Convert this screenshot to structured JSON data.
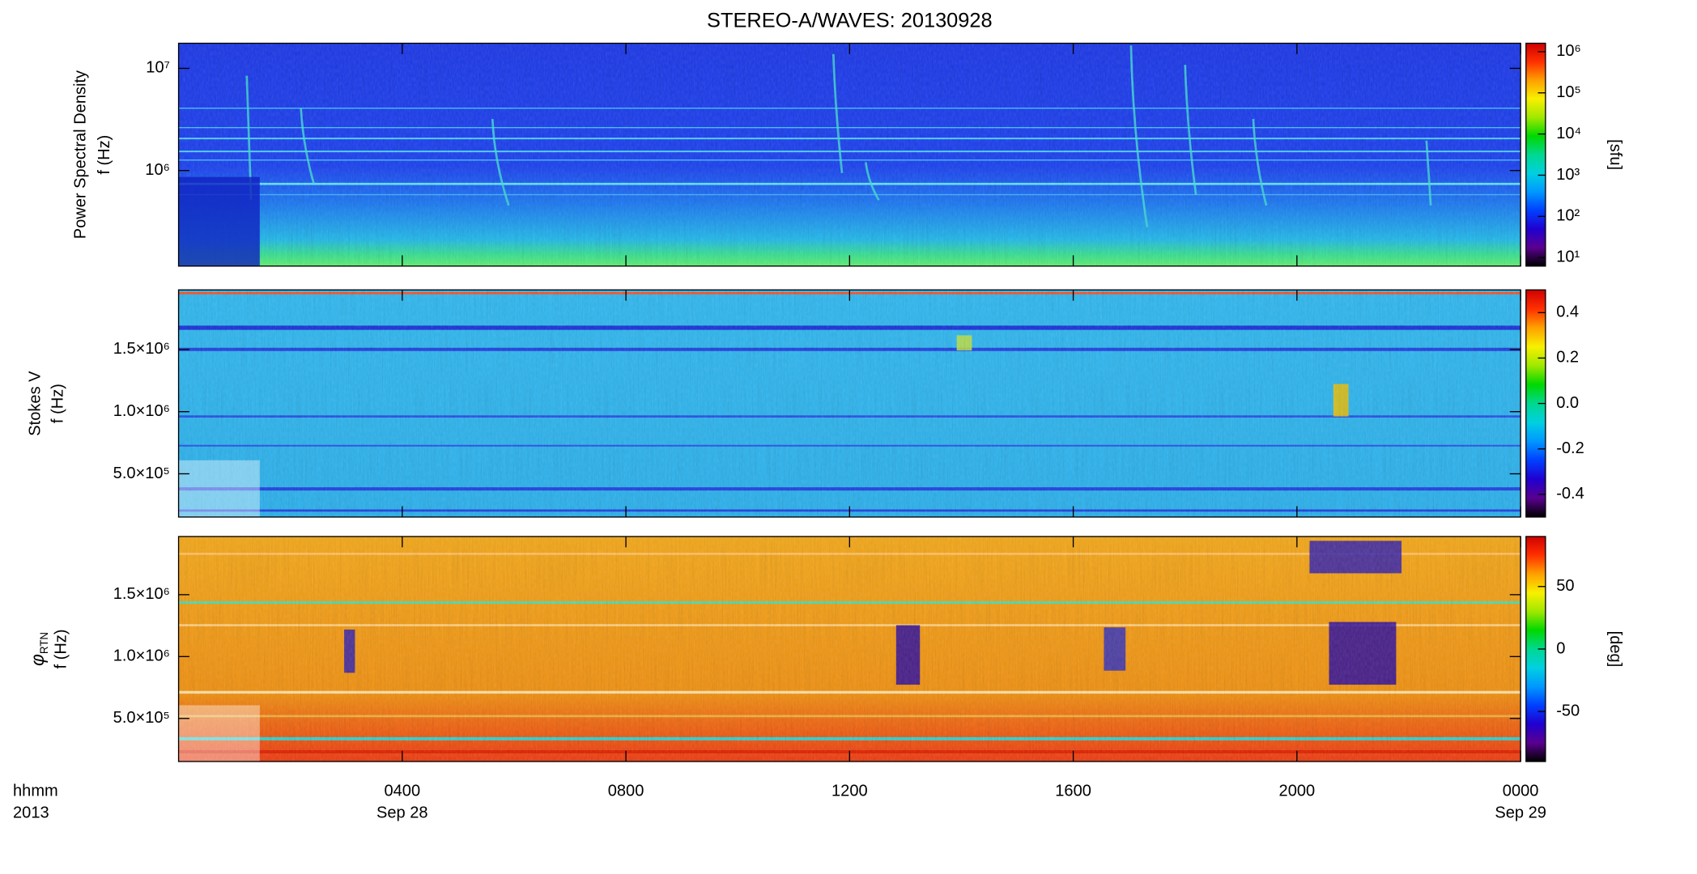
{
  "chart_data": [
    {
      "type": "spectrogram",
      "title": "STEREO-A/WAVES: 20130928",
      "ylabel": [
        "Power Spectral Density",
        "f (Hz)"
      ],
      "ylog": true,
      "ylim": [
        116000,
        17600000
      ],
      "yticks": [
        {
          "value": 1000000,
          "label": "10⁶"
        },
        {
          "value": 10000000,
          "label": "10⁷"
        }
      ],
      "clog": true,
      "clim": [
        6.2,
        1600000
      ],
      "cticks": [
        {
          "value": 10,
          "label": "10¹"
        },
        {
          "value": 100,
          "label": "10²"
        },
        {
          "value": 1000,
          "label": "10³"
        },
        {
          "value": 10000,
          "label": "10⁴"
        },
        {
          "value": 100000,
          "label": "10⁵"
        },
        {
          "value": 1000000,
          "label": "10⁶"
        }
      ],
      "clabel": "[sfu]",
      "colormap": [
        "#000000",
        "#5a0090",
        "#2000d0",
        "#0040ff",
        "#0098ff",
        "#00d0e0",
        "#00d890",
        "#00d800",
        "#a0e800",
        "#f8f000",
        "#ffa000",
        "#ff3000",
        "#d00000"
      ]
    },
    {
      "type": "spectrogram",
      "ylabel": [
        "Stokes V",
        "f (Hz)"
      ],
      "ylim": [
        152000,
        1980000
      ],
      "yticks": [
        {
          "value": 500000,
          "label": "5.0×10⁵"
        },
        {
          "value": 1000000,
          "label": "1.0×10⁶"
        },
        {
          "value": 1500000,
          "label": "1.5×10⁶"
        }
      ],
      "clim": [
        -0.5,
        0.5
      ],
      "cticks": [
        -0.4,
        -0.2,
        {
          "value": 0,
          "label": "0.0"
        },
        0.2,
        0.4
      ],
      "colormap": [
        "#000000",
        "#5a0090",
        "#2000d0",
        "#0040ff",
        "#0098ff",
        "#00d0e0",
        "#00d890",
        "#00d800",
        "#a0e800",
        "#f8f000",
        "#ffa000",
        "#ff3000",
        "#d00000"
      ]
    },
    {
      "type": "spectrogram",
      "ylabel": [
        "φ",
        "f (Hz)"
      ],
      "ylabel_sub": "RTN",
      "ylim": [
        152000,
        1970000
      ],
      "yticks": [
        {
          "value": 500000,
          "label": "5.0×10⁵"
        },
        {
          "value": 1000000,
          "label": "1.0×10⁶"
        },
        {
          "value": 1500000,
          "label": "1.5×10⁶"
        }
      ],
      "clim": [
        -90,
        90
      ],
      "cticks": [
        -50,
        0,
        50
      ],
      "clabel": "[deg]",
      "colormap": [
        "#000000",
        "#5a0090",
        "#2000d0",
        "#0040ff",
        "#0098ff",
        "#00d0e0",
        "#00d890",
        "#00d800",
        "#a0e800",
        "#f8f000",
        "#ffa000",
        "#ff3000",
        "#d00000"
      ],
      "xlim": [
        0,
        24
      ],
      "xticks": [
        {
          "value": 4,
          "label": "0400"
        },
        {
          "value": 8,
          "label": "0800"
        },
        {
          "value": 12,
          "label": "1200"
        },
        {
          "value": 16,
          "label": "1600"
        },
        {
          "value": 20,
          "label": "2000"
        },
        {
          "value": 24,
          "label": "0000"
        }
      ],
      "xtick_sublabels": [
        "Sep 28",
        null,
        null,
        null,
        null,
        "Sep 29"
      ],
      "xlabel": [
        "hhmm",
        "2013"
      ]
    }
  ]
}
